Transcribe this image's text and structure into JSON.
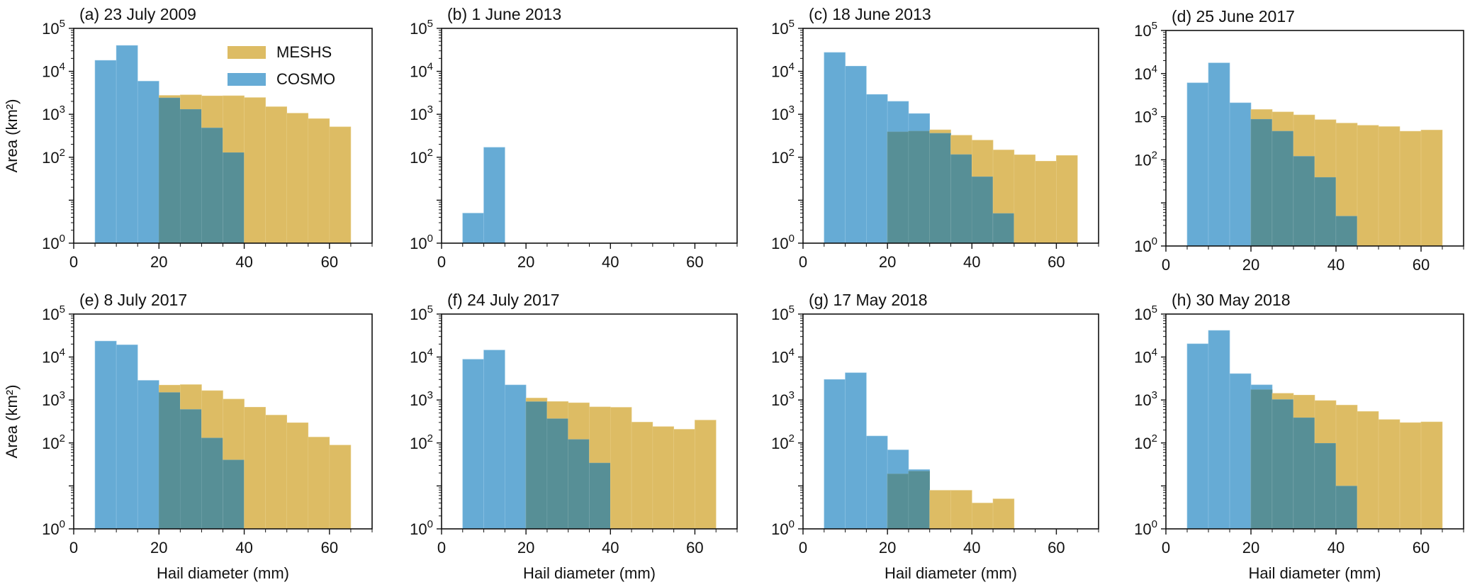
{
  "figure": {
    "colors": {
      "meshs": "#ddbc64",
      "cosmo": "#66abd5",
      "overlap": "#578f96",
      "axis": "#111111"
    },
    "legend": {
      "entries": [
        {
          "label": "MESHS",
          "series": "meshs"
        },
        {
          "label": "COSMO",
          "series": "cosmo"
        }
      ],
      "panel": "a",
      "placement": "top-right"
    }
  },
  "chart_data": [
    {
      "type": "bar",
      "panel": "a",
      "title": "(a) 23 July 2009",
      "xlabel": "",
      "ylabel": "Area (km²)",
      "yscale": "log",
      "xlim": [
        0,
        70
      ],
      "ylim": [
        1,
        100000
      ],
      "xticks": [
        0,
        20,
        40,
        60
      ],
      "yticks": [
        {
          "value": 1,
          "base": "10",
          "exp": "0"
        },
        {
          "value": 100,
          "base": "10",
          "exp": "2"
        },
        {
          "value": 1000,
          "base": "10",
          "exp": "3"
        },
        {
          "value": 10000,
          "base": "10",
          "exp": "4"
        },
        {
          "value": 100000,
          "base": "10",
          "exp": "5"
        }
      ],
      "bin_edges": [
        5,
        10,
        15,
        20,
        25,
        30,
        35,
        40,
        45,
        50,
        55,
        60,
        65
      ],
      "series": [
        {
          "name": "MESHS",
          "values": [
            0,
            0,
            0,
            2750,
            2830,
            2680,
            2700,
            2450,
            1500,
            1060,
            790,
            510
          ]
        },
        {
          "name": "COSMO",
          "values": [
            18000,
            40000,
            5900,
            2400,
            1300,
            480,
            128,
            0,
            0,
            0,
            0,
            0
          ]
        }
      ]
    },
    {
      "type": "bar",
      "panel": "b",
      "title": "(b) 1 June 2013",
      "xlabel": "",
      "ylabel": "",
      "yscale": "log",
      "xlim": [
        0,
        70
      ],
      "ylim": [
        1,
        100000
      ],
      "xticks": [
        0,
        20,
        40,
        60
      ],
      "yticks": [
        {
          "value": 1,
          "base": "10",
          "exp": "0"
        },
        {
          "value": 100,
          "base": "10",
          "exp": "2"
        },
        {
          "value": 1000,
          "base": "10",
          "exp": "3"
        },
        {
          "value": 10000,
          "base": "10",
          "exp": "4"
        },
        {
          "value": 100000,
          "base": "10",
          "exp": "5"
        }
      ],
      "bin_edges": [
        5,
        10,
        15,
        20,
        25,
        30,
        35,
        40,
        45,
        50,
        55,
        60,
        65
      ],
      "series": [
        {
          "name": "MESHS",
          "values": [
            0,
            0,
            0,
            0,
            0,
            0,
            0,
            0,
            0,
            0,
            0,
            0
          ]
        },
        {
          "name": "COSMO",
          "values": [
            5,
            170,
            0,
            0,
            0,
            0,
            0,
            0,
            0,
            0,
            0,
            0
          ]
        }
      ]
    },
    {
      "type": "bar",
      "panel": "c",
      "title": "(c) 18 June 2013",
      "xlabel": "",
      "ylabel": "",
      "yscale": "log",
      "xlim": [
        0,
        70
      ],
      "ylim": [
        1,
        100000
      ],
      "xticks": [
        0,
        20,
        40,
        60
      ],
      "yticks": [
        {
          "value": 1,
          "base": "10",
          "exp": "0"
        },
        {
          "value": 100,
          "base": "10",
          "exp": "2"
        },
        {
          "value": 1000,
          "base": "10",
          "exp": "3"
        },
        {
          "value": 10000,
          "base": "10",
          "exp": "4"
        },
        {
          "value": 100000,
          "base": "10",
          "exp": "5"
        }
      ],
      "bin_edges": [
        5,
        10,
        15,
        20,
        25,
        30,
        35,
        40,
        45,
        50,
        55,
        60,
        65
      ],
      "series": [
        {
          "name": "MESHS",
          "values": [
            0,
            0,
            0,
            390,
            405,
            435,
            325,
            250,
            148,
            114,
            81,
            110
          ]
        },
        {
          "name": "COSMO",
          "values": [
            27500,
            13200,
            2900,
            2000,
            1040,
            360,
            115,
            35,
            4.9,
            0,
            0,
            0
          ]
        }
      ]
    },
    {
      "type": "bar",
      "panel": "d",
      "title": "(d) 25 June 2017",
      "xlabel": "",
      "ylabel": "",
      "yscale": "log",
      "xlim": [
        0,
        70
      ],
      "ylim": [
        1,
        100000
      ],
      "xticks": [
        0,
        20,
        40,
        60
      ],
      "yticks": [
        {
          "value": 1,
          "base": "10",
          "exp": "0"
        },
        {
          "value": 100,
          "base": "10",
          "exp": "2"
        },
        {
          "value": 1000,
          "base": "10",
          "exp": "3"
        },
        {
          "value": 10000,
          "base": "10",
          "exp": "4"
        },
        {
          "value": 100000,
          "base": "10",
          "exp": "5"
        }
      ],
      "bin_edges": [
        5,
        10,
        15,
        20,
        25,
        30,
        35,
        40,
        45,
        50,
        55,
        60,
        65
      ],
      "series": [
        {
          "name": "MESHS",
          "values": [
            0,
            0,
            0,
            1470,
            1290,
            1100,
            850,
            710,
            630,
            590,
            460,
            490
          ]
        },
        {
          "name": "COSMO",
          "values": [
            6100,
            17700,
            2100,
            870,
            460,
            120,
            39,
            4.9,
            0,
            0,
            0,
            0
          ]
        }
      ]
    },
    {
      "type": "bar",
      "panel": "e",
      "title": "(e) 8 July 2017",
      "xlabel": "Hail diameter (mm)",
      "ylabel": "Area (km²)",
      "yscale": "log",
      "xlim": [
        0,
        70
      ],
      "ylim": [
        1,
        100000
      ],
      "xticks": [
        0,
        20,
        40,
        60
      ],
      "yticks": [
        {
          "value": 1,
          "base": "10",
          "exp": "0"
        },
        {
          "value": 100,
          "base": "10",
          "exp": "2"
        },
        {
          "value": 1000,
          "base": "10",
          "exp": "3"
        },
        {
          "value": 10000,
          "base": "10",
          "exp": "4"
        },
        {
          "value": 100000,
          "base": "10",
          "exp": "5"
        }
      ],
      "bin_edges": [
        5,
        10,
        15,
        20,
        25,
        30,
        35,
        40,
        45,
        50,
        55,
        60,
        65
      ],
      "series": [
        {
          "name": "MESHS",
          "values": [
            0,
            0,
            0,
            2220,
            2280,
            1650,
            1050,
            680,
            445,
            295,
            137,
            89
          ]
        },
        {
          "name": "COSMO",
          "values": [
            23500,
            19200,
            2860,
            1490,
            600,
            130,
            40,
            0,
            0,
            0,
            0,
            0
          ]
        }
      ]
    },
    {
      "type": "bar",
      "panel": "f",
      "title": "(f) 24 July 2017",
      "xlabel": "Hail diameter (mm)",
      "ylabel": "",
      "yscale": "log",
      "xlim": [
        0,
        70
      ],
      "ylim": [
        1,
        100000
      ],
      "xticks": [
        0,
        20,
        40,
        60
      ],
      "yticks": [
        {
          "value": 1,
          "base": "10",
          "exp": "0"
        },
        {
          "value": 100,
          "base": "10",
          "exp": "2"
        },
        {
          "value": 1000,
          "base": "10",
          "exp": "3"
        },
        {
          "value": 10000,
          "base": "10",
          "exp": "4"
        },
        {
          "value": 100000,
          "base": "10",
          "exp": "5"
        }
      ],
      "bin_edges": [
        5,
        10,
        15,
        20,
        25,
        30,
        35,
        40,
        45,
        50,
        55,
        60,
        65
      ],
      "series": [
        {
          "name": "MESHS",
          "values": [
            0,
            0,
            0,
            1110,
            920,
            860,
            690,
            675,
            305,
            240,
            208,
            340
          ]
        },
        {
          "name": "COSMO",
          "values": [
            8850,
            14500,
            2240,
            910,
            365,
            120,
            34,
            0,
            0,
            0,
            0,
            0
          ]
        }
      ]
    },
    {
      "type": "bar",
      "panel": "g",
      "title": "(g) 17 May 2018",
      "xlabel": "Hail diameter (mm)",
      "ylabel": "",
      "yscale": "log",
      "xlim": [
        0,
        70
      ],
      "ylim": [
        1,
        100000
      ],
      "xticks": [
        0,
        20,
        40,
        60
      ],
      "yticks": [
        {
          "value": 1,
          "base": "10",
          "exp": "0"
        },
        {
          "value": 100,
          "base": "10",
          "exp": "2"
        },
        {
          "value": 1000,
          "base": "10",
          "exp": "3"
        },
        {
          "value": 10000,
          "base": "10",
          "exp": "4"
        },
        {
          "value": 100000,
          "base": "10",
          "exp": "5"
        }
      ],
      "bin_edges": [
        5,
        10,
        15,
        20,
        25,
        30,
        35,
        40,
        45,
        50,
        55,
        60,
        65
      ],
      "series": [
        {
          "name": "MESHS",
          "values": [
            0,
            0,
            0,
            19,
            22,
            7.9,
            7.9,
            4.0,
            5.0,
            0,
            0,
            0
          ]
        },
        {
          "name": "COSMO",
          "values": [
            3000,
            4300,
            145,
            69,
            24,
            0,
            0,
            0,
            0,
            0,
            0,
            0
          ]
        }
      ]
    },
    {
      "type": "bar",
      "panel": "h",
      "title": "(h) 30 May 2018",
      "xlabel": "Hail diameter (mm)",
      "ylabel": "",
      "yscale": "log",
      "xlim": [
        0,
        70
      ],
      "ylim": [
        1,
        100000
      ],
      "xticks": [
        0,
        20,
        40,
        60
      ],
      "yticks": [
        {
          "value": 1,
          "base": "10",
          "exp": "0"
        },
        {
          "value": 100,
          "base": "10",
          "exp": "2"
        },
        {
          "value": 1000,
          "base": "10",
          "exp": "3"
        },
        {
          "value": 10000,
          "base": "10",
          "exp": "4"
        },
        {
          "value": 100000,
          "base": "10",
          "exp": "5"
        }
      ],
      "bin_edges": [
        5,
        10,
        15,
        20,
        25,
        30,
        35,
        40,
        45,
        50,
        55,
        60,
        65
      ],
      "series": [
        {
          "name": "MESHS",
          "values": [
            0,
            0,
            0,
            1740,
            1430,
            1300,
            970,
            760,
            540,
            350,
            297,
            309
          ]
        },
        {
          "name": "COSMO",
          "values": [
            20300,
            41600,
            4100,
            2250,
            1020,
            385,
            98,
            9.9,
            0,
            0,
            0,
            0
          ]
        }
      ]
    }
  ]
}
